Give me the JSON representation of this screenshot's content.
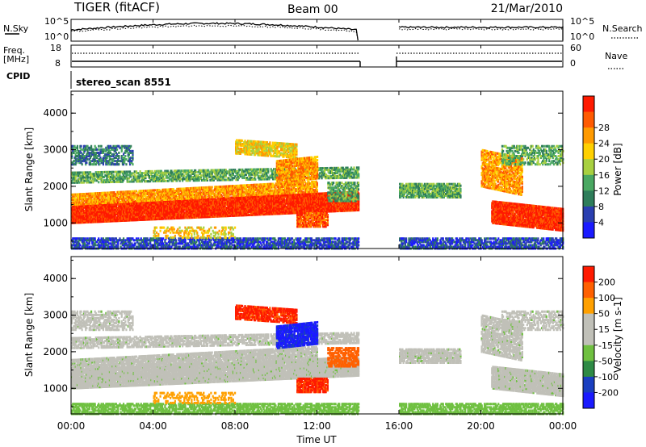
{
  "header": {
    "radar": "TIGER (fitACF)",
    "beam": "Beam 00",
    "date": "21/Mar/2010"
  },
  "noise_panel": {
    "left_label": "N.Sky",
    "right_label": "N.Search",
    "left_ticks": [
      "10^5",
      "10^0"
    ],
    "right_ticks": [
      "10^5",
      "10^0"
    ]
  },
  "freq_panel": {
    "left_label_1": "Freq.",
    "left_label_2": "[MHz]",
    "right_label": "Nave",
    "left_ticks": [
      "18",
      "8"
    ],
    "right_ticks": [
      "60",
      "0"
    ]
  },
  "cpid_panel": {
    "label": "CPID",
    "program": "stereo_scan 8551"
  },
  "colors": {
    "power_scale": [
      "#1a1aff",
      "#2a3fb0",
      "#2e7d5a",
      "#4aa862",
      "#a8d040",
      "#ffd000",
      "#ff9a00",
      "#ff5a00",
      "#ff1a00"
    ],
    "velocity_scale": [
      "#1a1aff",
      "#1a3fc0",
      "#2e8a45",
      "#6fc040",
      "#c0c0b8",
      "#c0c0b8",
      "#ffa000",
      "#ff6000",
      "#ff1a00"
    ]
  },
  "chart_data": [
    {
      "type": "heatmap",
      "xlabel": "Time UT",
      "ylabel": "Slant Range [km]",
      "x_range": [
        "00:00",
        "24:00"
      ],
      "ylim": [
        300,
        4600
      ],
      "x_ticks": [
        "00:00",
        "04:00",
        "08:00",
        "12:00",
        "16:00",
        "20:00",
        "00:00"
      ],
      "y_ticks": [
        1000,
        2000,
        3000,
        4000
      ],
      "data_gap": [
        "14:00",
        "16:00"
      ],
      "colorbar": {
        "label": "Power [dB]",
        "ticks": [
          4,
          8,
          12,
          16,
          20,
          24,
          28
        ]
      }
    },
    {
      "type": "heatmap",
      "xlabel": "Time UT",
      "ylabel": "Slant Range [km]",
      "x_range": [
        "00:00",
        "24:00"
      ],
      "ylim": [
        300,
        4600
      ],
      "x_ticks": [
        "00:00",
        "04:00",
        "08:00",
        "12:00",
        "16:00",
        "20:00",
        "00:00"
      ],
      "y_ticks": [
        1000,
        2000,
        3000,
        4000
      ],
      "data_gap": [
        "14:00",
        "16:00"
      ],
      "colorbar": {
        "label": "Velocity [m s-1]",
        "ticks": [
          200,
          100,
          50,
          15,
          -15,
          -50,
          -100,
          -200
        ]
      }
    }
  ]
}
